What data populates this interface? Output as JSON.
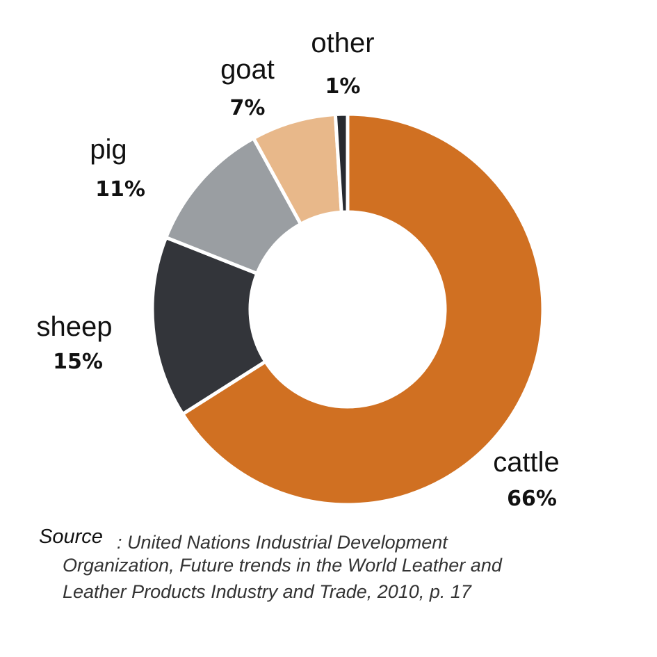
{
  "chart_data": {
    "type": "pie",
    "donut": true,
    "slices": [
      {
        "label": "cattle",
        "value": 66,
        "value_label": "66%",
        "color": "#d07022"
      },
      {
        "label": "sheep",
        "value": 15,
        "value_label": "15%",
        "color": "#33353a"
      },
      {
        "label": "pig",
        "value": 11,
        "value_label": "11%",
        "color": "#9a9ea2"
      },
      {
        "label": "goat",
        "value": 7,
        "value_label": "7%",
        "color": "#e8b88a"
      },
      {
        "label": "other",
        "value": 1,
        "value_label": "1%",
        "color": "#272a30"
      }
    ]
  },
  "source": {
    "word": "Source",
    "line1": ": United Nations Industrial Development",
    "line2": "Organization, Future trends in the World Leather and",
    "line3": "Leather Products Industry and Trade, 2010, p. 17"
  }
}
